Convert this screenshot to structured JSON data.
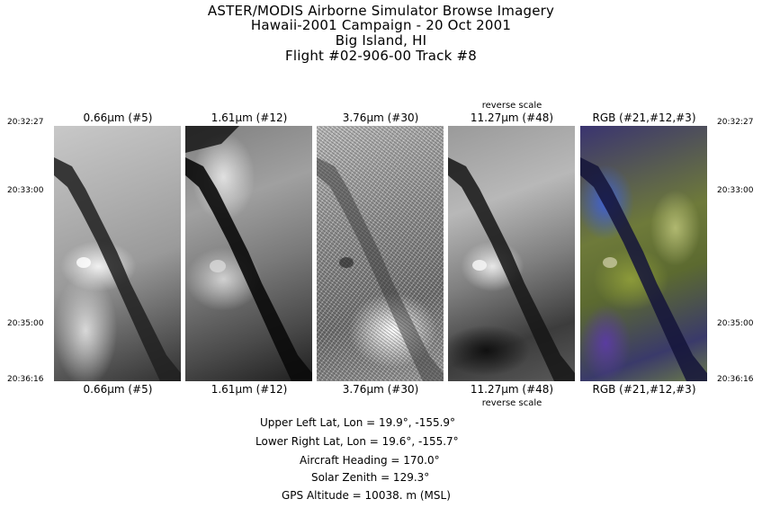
{
  "header": {
    "line1": "ASTER/MODIS Airborne Simulator Browse Imagery",
    "line2": "Hawaii-2001 Campaign - 20 Oct 2001",
    "line3": "Big Island, HI",
    "line4": "Flight #02-906-00 Track #8"
  },
  "times": [
    "20:32:27",
    "20:33:00",
    "20:35:00",
    "20:36:16"
  ],
  "panels": [
    {
      "label": "0.66μm (#5)"
    },
    {
      "label": "1.61μm (#12)"
    },
    {
      "label": "3.76μm (#30)"
    },
    {
      "label": "11.27μm (#48)",
      "note": "reverse scale"
    },
    {
      "label": "RGB (#21,#12,#3)"
    }
  ],
  "info": {
    "upper_left": "Upper Left Lat, Lon =    19.9°, -155.9°",
    "lower_right": "Lower Right Lat, Lon =    19.6°, -155.7°",
    "heading": "Aircraft Heading =  170.0°",
    "zenith": "Solar Zenith =  129.3°",
    "altitude": "GPS Altitude =  10038. m (MSL)"
  }
}
